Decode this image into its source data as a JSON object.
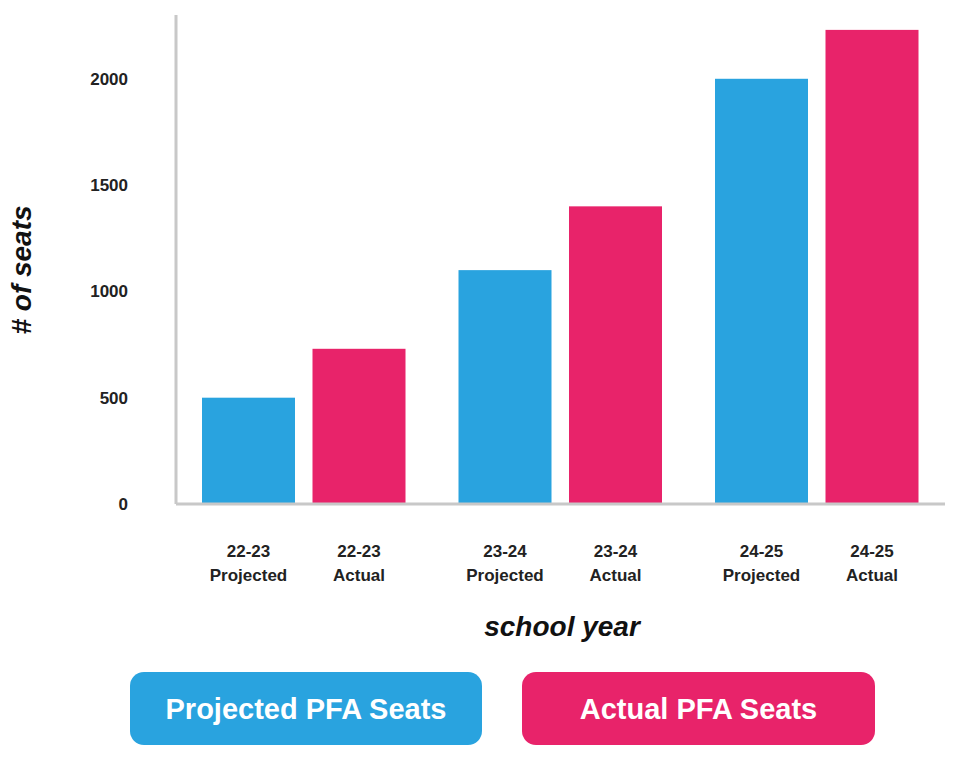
{
  "chart_data": {
    "type": "bar",
    "x_label": "school year",
    "y_label": "# of seats",
    "categories": [
      "22-23 Projected",
      "22-23 Actual",
      "23-24 Projected",
      "23-24 Actual",
      "24-25 Projected",
      "24-25 Actual"
    ],
    "series": [
      {
        "name": "Projected PFA Seats",
        "color": "#29a3df",
        "values": [
          500,
          null,
          1100,
          null,
          2000,
          null
        ]
      },
      {
        "name": "Actual PFA Seats",
        "color": "#e8236a",
        "values": [
          null,
          730,
          null,
          1400,
          null,
          2230
        ]
      }
    ],
    "ylim": [
      0,
      2300
    ],
    "yticks": [
      0,
      500,
      1000,
      1500,
      2000
    ],
    "grid": false,
    "legend": "bottom"
  }
}
